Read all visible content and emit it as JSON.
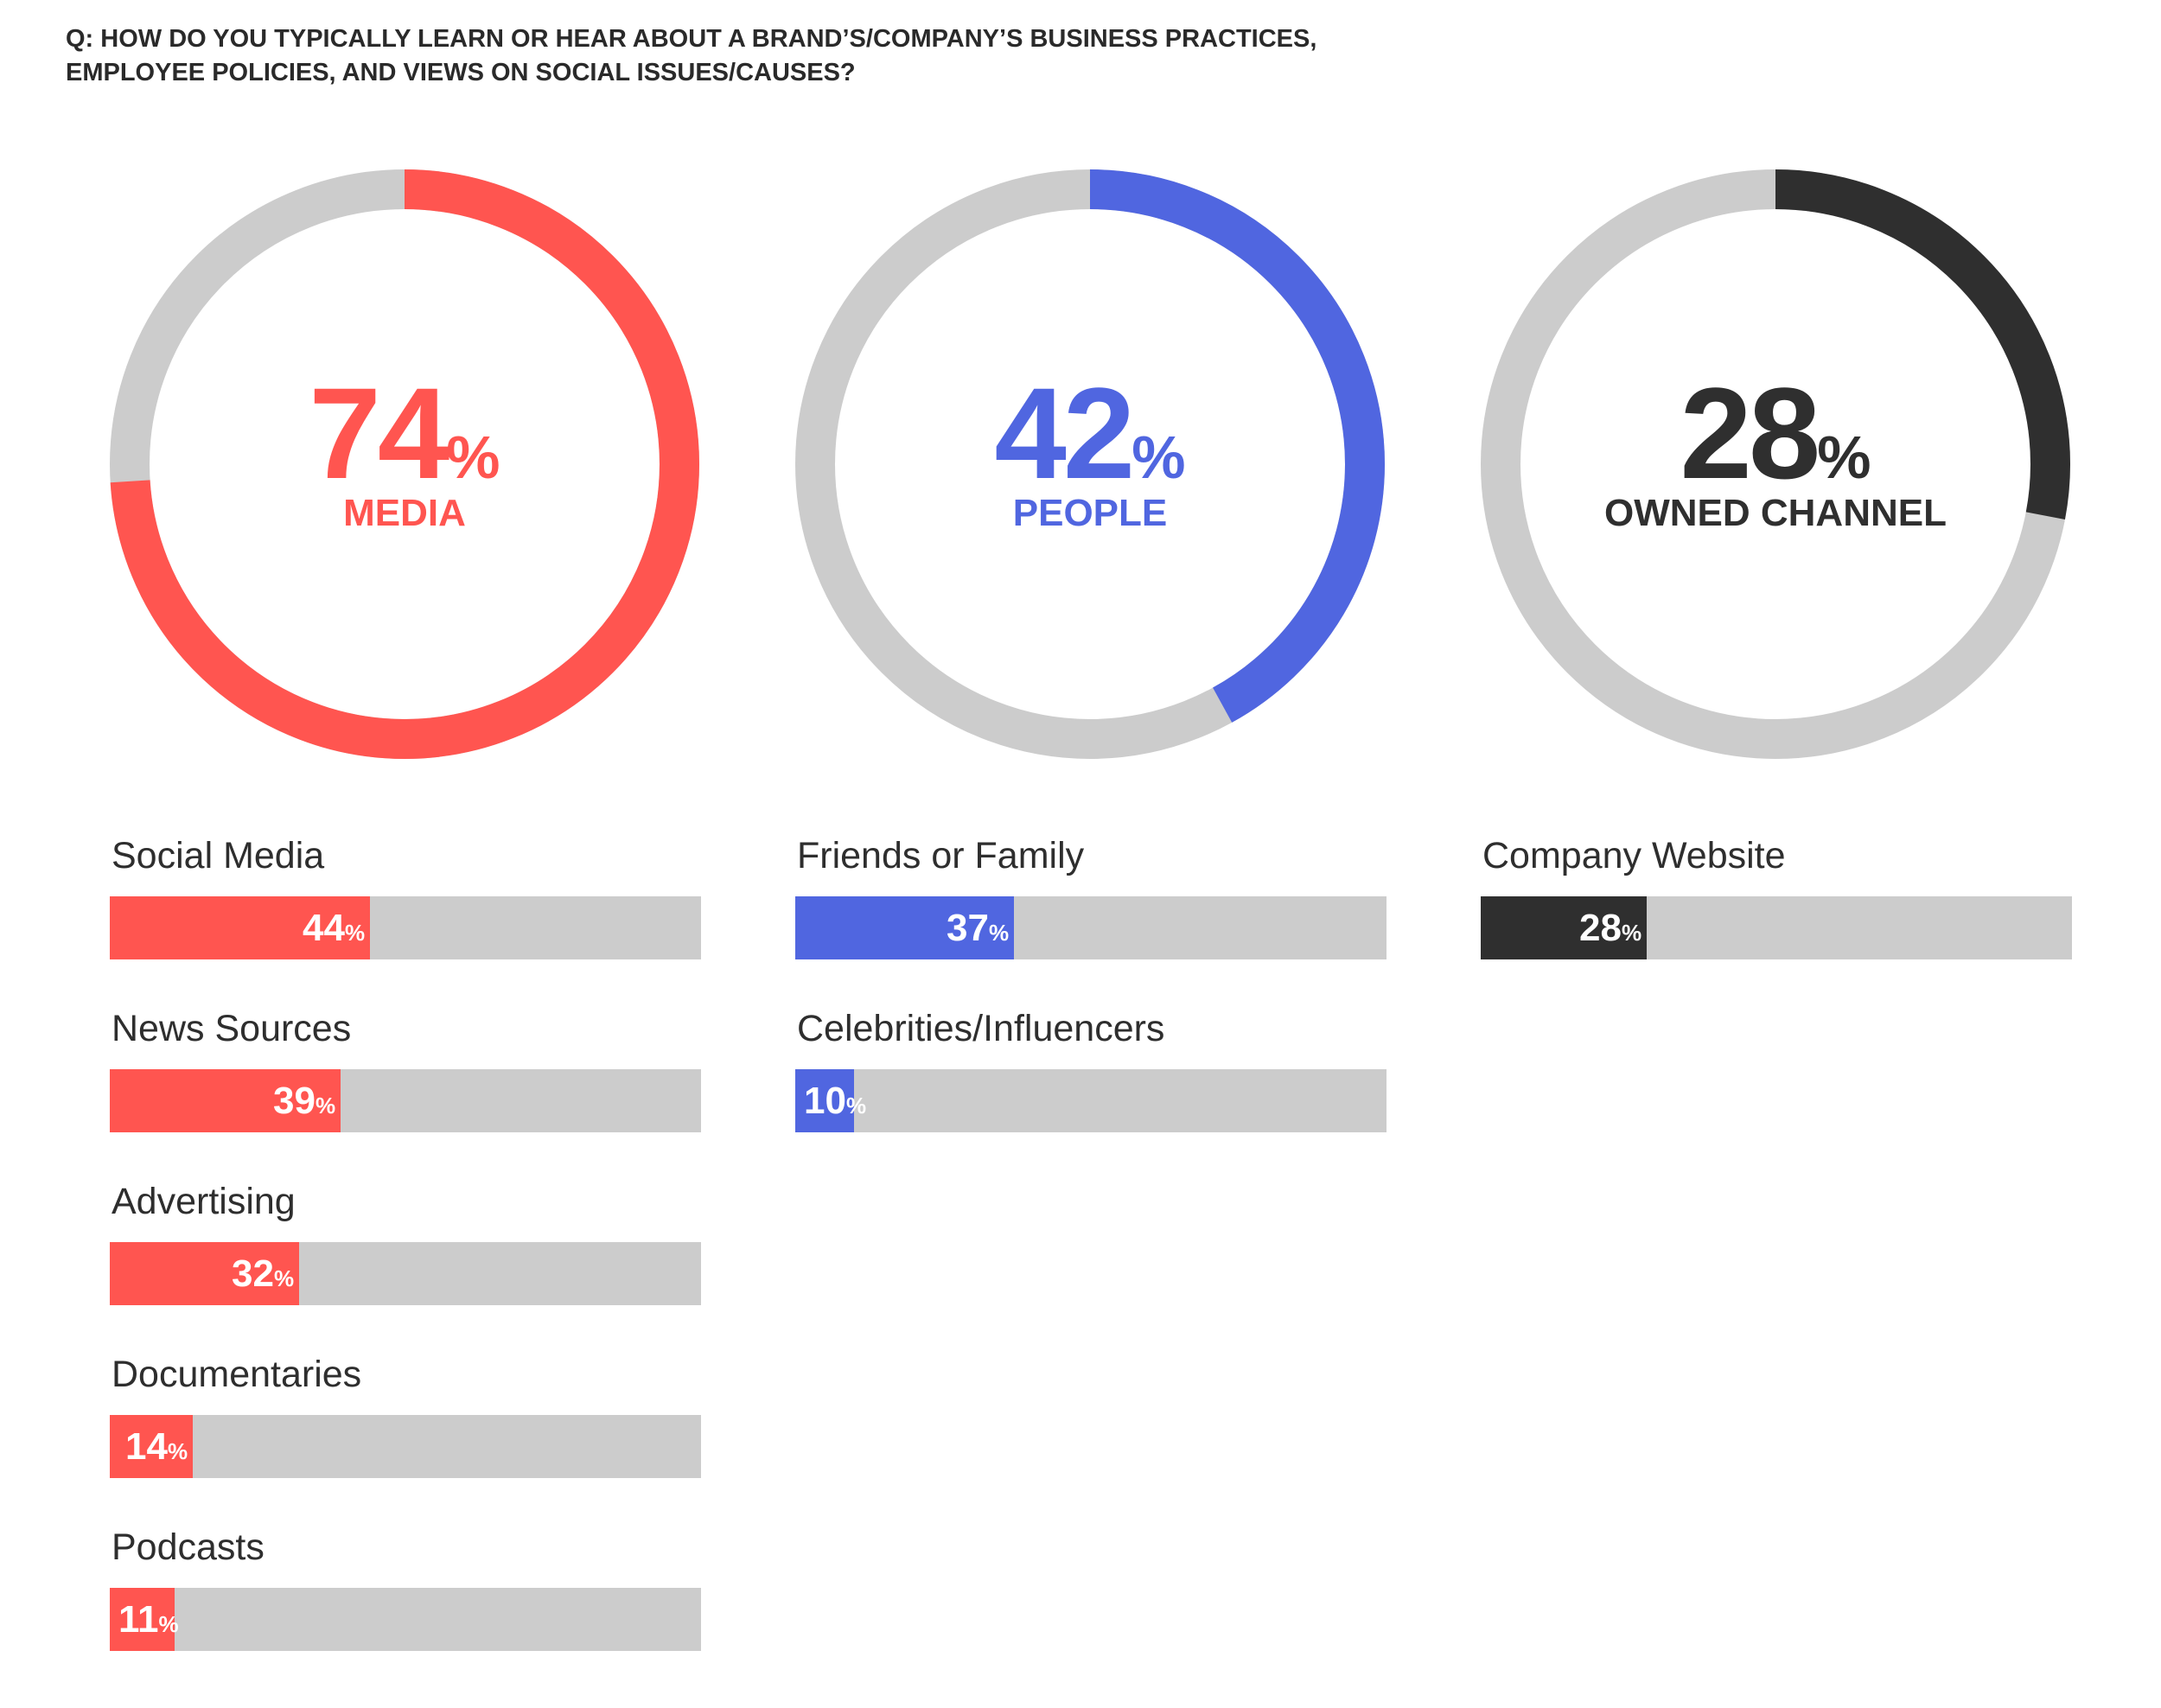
{
  "question": {
    "line1": "Q:  HOW DO YOU TYPICALLY LEARN OR HEAR ABOUT A BRAND’S/COMPANY’S BUSINESS PRACTICES,",
    "line2": "EMPLOYEE POLICIES, AND VIEWS ON SOCIAL ISSUES/CAUSES?"
  },
  "colors": {
    "media": "#ff5550",
    "people": "#5066e0",
    "owned": "#2f2f2f",
    "track": "#cccccc"
  },
  "chart_data": [
    {
      "type": "pie",
      "style": "donut",
      "category": "MEDIA",
      "value": 74,
      "value_text": "74",
      "unit": "%",
      "range": [
        0,
        100
      ],
      "color": "#ff5550"
    },
    {
      "type": "pie",
      "style": "donut",
      "category": "PEOPLE",
      "value": 42,
      "value_text": "42",
      "unit": "%",
      "range": [
        0,
        100
      ],
      "color": "#5066e0"
    },
    {
      "type": "pie",
      "style": "donut",
      "category": "OWNED CHANNEL",
      "value": 28,
      "value_text": "28",
      "unit": "%",
      "range": [
        0,
        100
      ],
      "color": "#2f2f2f"
    },
    {
      "type": "bar",
      "orientation": "horizontal",
      "group": "MEDIA",
      "color": "#ff5550",
      "xlim": [
        0,
        100
      ],
      "unit": "%",
      "categories": [
        "Social Media",
        "News Sources",
        "Advertising",
        "Documentaries",
        "Podcasts"
      ],
      "values": [
        44,
        39,
        32,
        14,
        11
      ],
      "labels": [
        "44",
        "39",
        "32",
        "14",
        "11"
      ]
    },
    {
      "type": "bar",
      "orientation": "horizontal",
      "group": "PEOPLE",
      "color": "#5066e0",
      "xlim": [
        0,
        100
      ],
      "unit": "%",
      "categories": [
        "Friends or Family",
        "Celebrities/Influencers"
      ],
      "values": [
        37,
        10
      ],
      "labels": [
        "37",
        "10"
      ]
    },
    {
      "type": "bar",
      "orientation": "horizontal",
      "group": "OWNED CHANNEL",
      "color": "#2f2f2f",
      "xlim": [
        0,
        100
      ],
      "unit": "%",
      "categories": [
        "Company Website"
      ],
      "values": [
        28
      ],
      "labels": [
        "28"
      ]
    }
  ]
}
